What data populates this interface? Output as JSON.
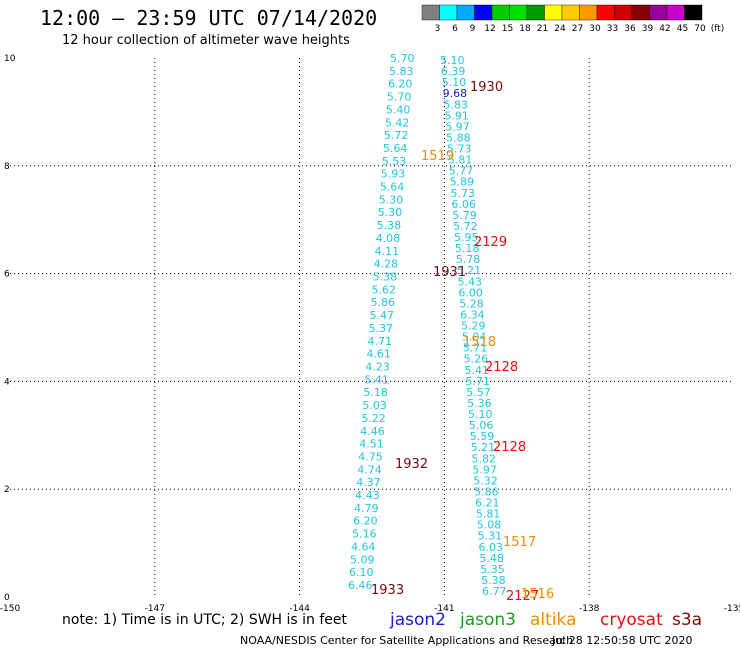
{
  "header": {
    "title": "12:00 – 23:59 UTC 07/14/2020",
    "subtitle": "12 hour collection of altimeter wave heights"
  },
  "footer": {
    "note": "note:  1) Time is in UTC; 2) SWH is in feet",
    "credit": "NOAA/NESDIS Center for Satellite Applications and Research",
    "timestamp": "Jul 28 12:50:58 UTC 2020"
  },
  "satellites": [
    {
      "name": "jason2",
      "color": "#1a1acc"
    },
    {
      "name": "jason3",
      "color": "#1f9a1f"
    },
    {
      "name": "altika",
      "color": "#f08c00"
    },
    {
      "name": "cryosat",
      "color": "#e01010"
    },
    {
      "name": "s3a",
      "color": "#7a0a0a"
    }
  ],
  "colorbar": {
    "labels": [
      "3",
      "6",
      "9",
      "12",
      "15",
      "18",
      "21",
      "24",
      "27",
      "30",
      "33",
      "36",
      "39",
      "42",
      "45",
      "70",
      "(ft)"
    ],
    "colors": [
      "#808080",
      "#00ffff",
      "#00aaff",
      "#0000ff",
      "#00cc00",
      "#00e000",
      "#009900",
      "#ffff00",
      "#ffcc00",
      "#ff9900",
      "#ff0000",
      "#cc0000",
      "#880000",
      "#990099",
      "#cc00cc",
      "#000000"
    ]
  },
  "chart_data": {
    "type": "scatter",
    "title": "12:00 – 23:59 UTC 07/14/2020",
    "subtitle": "12 hour collection of altimeter wave heights",
    "xlim": [
      -150,
      -135
    ],
    "ylim": [
      0,
      10
    ],
    "xticks": [
      "-150",
      "-147",
      "-144",
      "-141",
      "-138",
      "-135"
    ],
    "yticks": [
      "0",
      "2",
      "4",
      "6",
      "8",
      "10"
    ],
    "grid": true,
    "point_color": "#22c4de",
    "series": [
      {
        "values": [
          {
            "x": -145.7,
            "y": 0.4,
            "v": "6.46"
          },
          {
            "x": -145.65,
            "y": 0.65,
            "v": "6.10"
          },
          {
            "x": -145.6,
            "y": 0.92,
            "v": "5.09"
          },
          {
            "x": -145.55,
            "y": 1.18,
            "v": "4.64"
          },
          {
            "x": -145.5,
            "y": 1.45,
            "v": "5.16"
          },
          {
            "x": -145.45,
            "y": 1.72,
            "v": "6.20"
          },
          {
            "x": -145.4,
            "y": 1.98,
            "v": "4.79"
          },
          {
            "x": -145.35,
            "y": 2.25,
            "v": "4.43"
          },
          {
            "x": -145.3,
            "y": 2.52,
            "v": "4.37"
          },
          {
            "x": -145.25,
            "y": 2.78,
            "v": "4.74"
          },
          {
            "x": -145.2,
            "y": 2.98,
            "v": "4.75"
          },
          {
            "x": -145.15,
            "y": 3.24,
            "v": "4.51"
          },
          {
            "x": -145.1,
            "y": 3.52,
            "v": "4.46"
          },
          {
            "x": -145.05,
            "y": 3.78,
            "v": "5.22"
          },
          {
            "x": -145.0,
            "y": 4.05,
            "v": "5.03"
          },
          {
            "x": -144.95,
            "y": 4.32,
            "v": "5.18"
          },
          {
            "x": -144.9,
            "y": 4.58,
            "v": "5.41"
          },
          {
            "x": -144.85,
            "y": 4.85,
            "v": "4.23"
          },
          {
            "x": -144.8,
            "y": 5.12,
            "v": "4.61"
          },
          {
            "x": -144.75,
            "y": 5.38,
            "v": "4.71"
          },
          {
            "x": -144.7,
            "y": 5.65,
            "v": "5.37"
          },
          {
            "x": -144.65,
            "y": 5.92,
            "v": "5.47"
          },
          {
            "x": -144.6,
            "y": 6.18,
            "v": "5.86"
          },
          {
            "x": -144.55,
            "y": 6.45,
            "v": "5.62"
          },
          {
            "x": -144.5,
            "y": 6.72,
            "v": "5.38"
          },
          {
            "x": -144.45,
            "y": 6.98,
            "v": "4.28"
          },
          {
            "x": -144.4,
            "y": 7.25,
            "v": "4.11"
          },
          {
            "x": -144.35,
            "y": 7.52,
            "v": "4.08"
          },
          {
            "x": -144.3,
            "y": 7.78,
            "v": "5.38"
          },
          {
            "x": -144.25,
            "y": 8.05,
            "v": "5.30"
          },
          {
            "x": -144.2,
            "y": 8.32,
            "v": "5.30"
          },
          {
            "x": -144.15,
            "y": 8.58,
            "v": "5.64"
          },
          {
            "x": -144.1,
            "y": 8.85,
            "v": "5.93"
          },
          {
            "x": -144.05,
            "y": 9.12,
            "v": "5.53"
          },
          {
            "x": -144.0,
            "y": 9.38,
            "v": "5.64"
          },
          {
            "x": -143.95,
            "y": 9.65,
            "v": "5.72"
          },
          {
            "x": -143.9,
            "y": 9.8,
            "v": "5.42"
          },
          {
            "x": -143.85,
            "y": 9.9,
            "v": "5.40"
          },
          {
            "x": -143.8,
            "y": 9.95,
            "v": "5.70"
          },
          {
            "x": -143.75,
            "y": 9.98,
            "v": "6.20"
          },
          {
            "x": -143.7,
            "y": 9.99,
            "v": "5.83"
          },
          {
            "x": -143.65,
            "y": 10.0,
            "v": "5.70"
          }
        ]
      }
    ],
    "passes": [
      {
        "label": "1930",
        "color": "#7a0a0a"
      },
      {
        "label": "2129",
        "color": "#e01010"
      },
      {
        "label": "1931",
        "color": "#7a0a0a"
      },
      {
        "label": "1518",
        "color": "#f08c00"
      },
      {
        "label": "2128",
        "color": "#e01010"
      },
      {
        "label": "2128",
        "color": "#e01010"
      },
      {
        "label": "1932",
        "color": "#7a0a0a"
      },
      {
        "label": "1517",
        "color": "#f08c00"
      },
      {
        "label": "1933",
        "color": "#7a0a0a"
      },
      {
        "label": "2127",
        "color": "#e01010"
      },
      {
        "label": "1516",
        "color": "#f08c00"
      },
      {
        "label": "1519",
        "color": "#f08c00"
      }
    ]
  }
}
